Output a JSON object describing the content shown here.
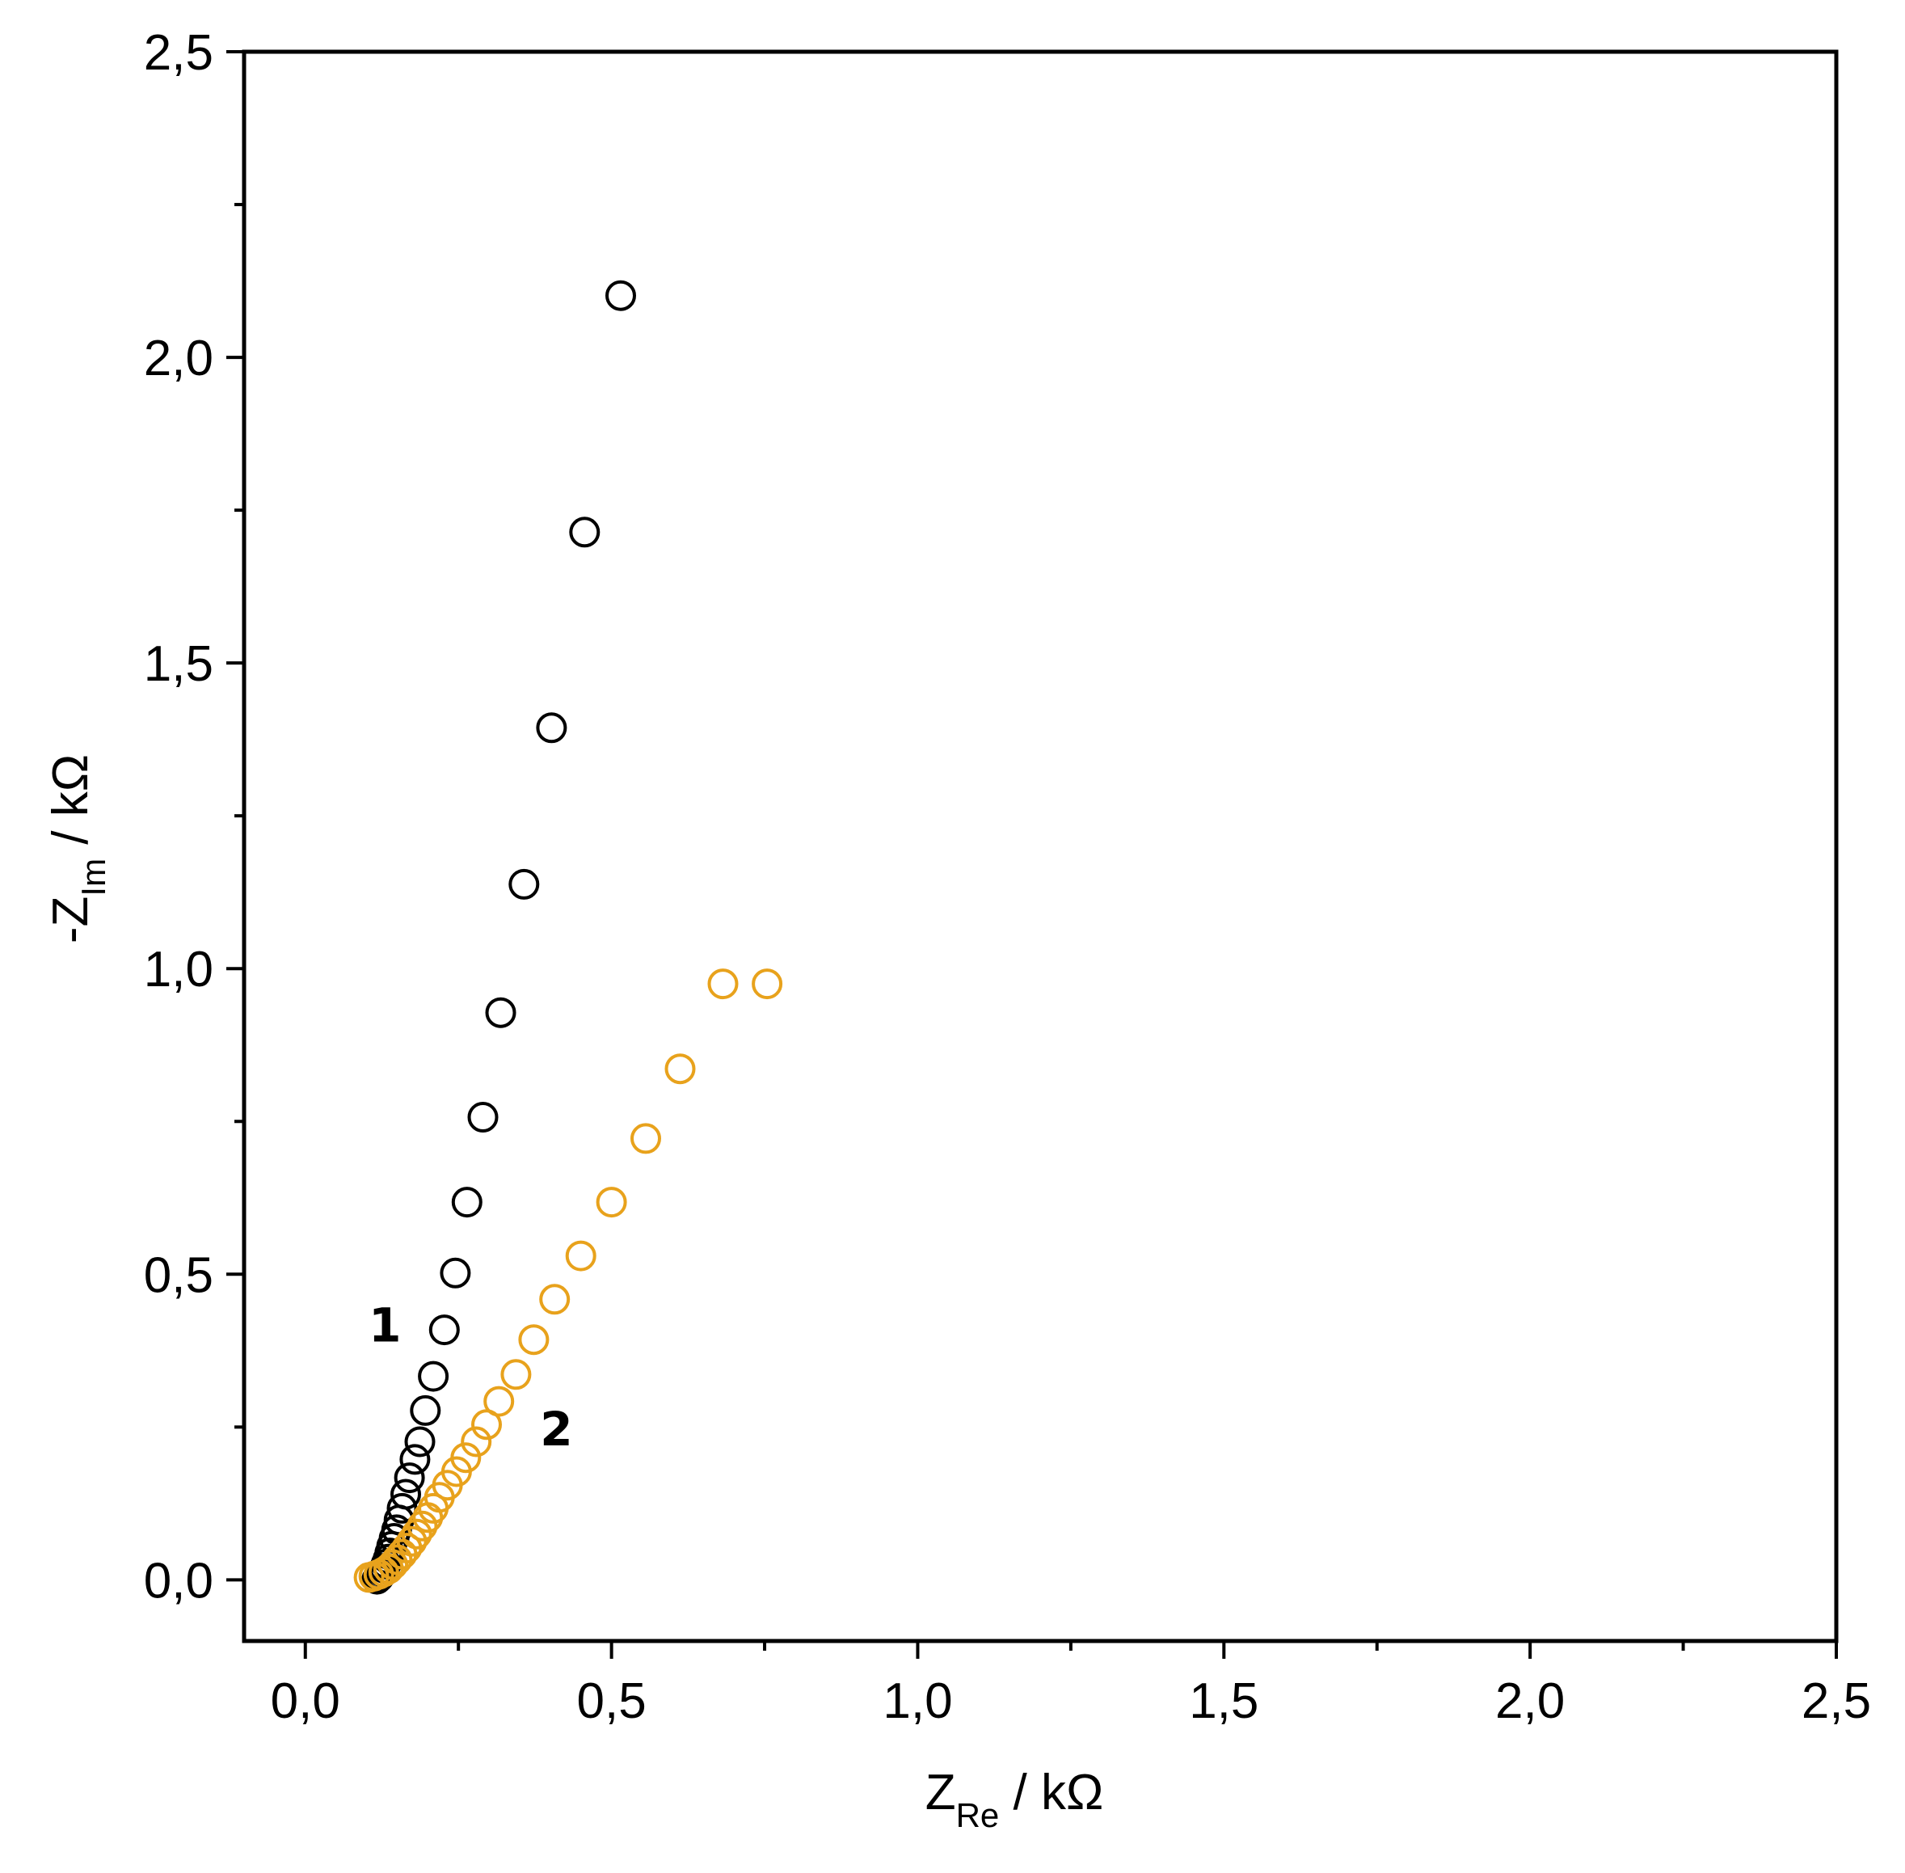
{
  "chart_data": {
    "type": "scatter",
    "title": "",
    "x_axis": {
      "label_main": "Z",
      "label_sub": "Re",
      "label_unit": " / kΩ",
      "range": [
        -0.1,
        2.5
      ]
    },
    "y_axis": {
      "label_main": "-Z",
      "label_sub": "Im",
      "label_unit": " / kΩ",
      "range": [
        -0.1,
        2.5
      ]
    },
    "x_tick_values": [
      0.0,
      0.5,
      1.0,
      1.5,
      2.0,
      2.5
    ],
    "x_tick_labels": [
      "0,0",
      "0,5",
      "1,0",
      "1,5",
      "2,0",
      "2,5"
    ],
    "y_tick_values": [
      0.0,
      0.5,
      1.0,
      1.5,
      2.0,
      2.5
    ],
    "y_tick_labels": [
      "0,0",
      "0,5",
      "1,0",
      "1,5",
      "2,0",
      "2,5"
    ],
    "minor_ticks": true,
    "grid": false,
    "legend": "none",
    "marker": "open-circle",
    "series": [
      {
        "label": "1",
        "color": "#000000",
        "points": [
          [
            0.117,
            0.001
          ],
          [
            0.12,
            0.004
          ],
          [
            0.123,
            0.008
          ],
          [
            0.126,
            0.013
          ],
          [
            0.129,
            0.019
          ],
          [
            0.132,
            0.026
          ],
          [
            0.135,
            0.034
          ],
          [
            0.138,
            0.044
          ],
          [
            0.141,
            0.055
          ],
          [
            0.145,
            0.068
          ],
          [
            0.149,
            0.082
          ],
          [
            0.153,
            0.098
          ],
          [
            0.158,
            0.117
          ],
          [
            0.164,
            0.14
          ],
          [
            0.17,
            0.167
          ],
          [
            0.179,
            0.197
          ],
          [
            0.187,
            0.226
          ],
          [
            0.196,
            0.277
          ],
          [
            0.209,
            0.333
          ],
          [
            0.227,
            0.409
          ],
          [
            0.245,
            0.502
          ],
          [
            0.264,
            0.618
          ],
          [
            0.29,
            0.757
          ],
          [
            0.319,
            0.928
          ],
          [
            0.357,
            1.138
          ],
          [
            0.402,
            1.394
          ],
          [
            0.456,
            1.714
          ],
          [
            0.515,
            2.101
          ]
        ]
      },
      {
        "label": "2",
        "color": "#E8A21C",
        "points": [
          [
            0.104,
            0.004
          ],
          [
            0.112,
            0.006
          ],
          [
            0.12,
            0.009
          ],
          [
            0.128,
            0.013
          ],
          [
            0.136,
            0.018
          ],
          [
            0.143,
            0.025
          ],
          [
            0.15,
            0.033
          ],
          [
            0.158,
            0.042
          ],
          [
            0.166,
            0.052
          ],
          [
            0.174,
            0.063
          ],
          [
            0.182,
            0.075
          ],
          [
            0.191,
            0.088
          ],
          [
            0.2,
            0.102
          ],
          [
            0.209,
            0.117
          ],
          [
            0.219,
            0.135
          ],
          [
            0.232,
            0.155
          ],
          [
            0.247,
            0.177
          ],
          [
            0.262,
            0.2
          ],
          [
            0.279,
            0.226
          ],
          [
            0.296,
            0.254
          ],
          [
            0.316,
            0.292
          ],
          [
            0.344,
            0.336
          ],
          [
            0.373,
            0.393
          ],
          [
            0.407,
            0.459
          ],
          [
            0.45,
            0.53
          ],
          [
            0.5,
            0.618
          ],
          [
            0.556,
            0.722
          ],
          [
            0.612,
            0.836
          ],
          [
            0.682,
            0.975
          ],
          [
            0.754,
            0.975
          ]
        ]
      }
    ],
    "colors": {
      "series_1": "#000000",
      "series_2": "#E8A21C",
      "axes": "#000000"
    }
  }
}
